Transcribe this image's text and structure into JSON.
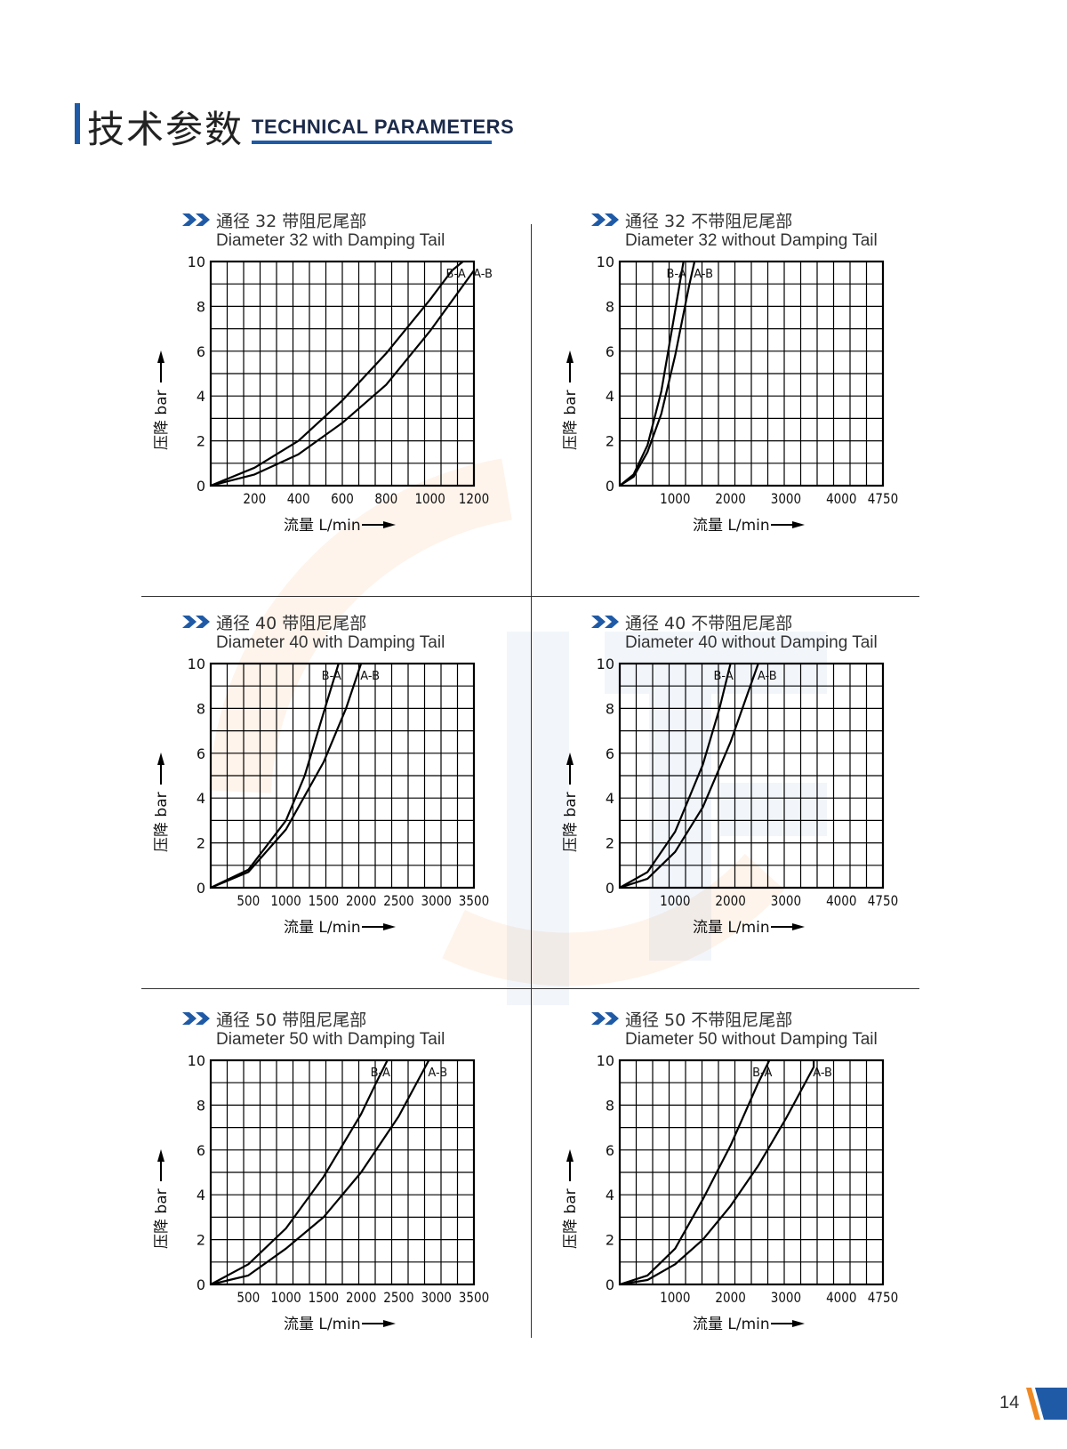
{
  "header": {
    "title_cn": "技术参数",
    "title_en": "TECHNICAL PARAMETERS"
  },
  "page_number": "14",
  "colors": {
    "accent": "#1f5aa6",
    "orange": "#f08a24",
    "line": "#000000",
    "text": "#333333"
  },
  "chart_data": [
    {
      "type": "line",
      "title_cn": "通径 32 带阻尼尾部",
      "title_en": "Diameter 32 with Damping Tail",
      "xlabel": "流量 L/min",
      "ylabel": "压降 bar",
      "xlim": [
        0,
        1200
      ],
      "ylim": [
        0,
        10
      ],
      "x_ticks": [
        "200",
        "400",
        "600",
        "800",
        "1000",
        "1200"
      ],
      "y_ticks": [
        "0",
        "2",
        "4",
        "6",
        "8",
        "10"
      ],
      "grid": true,
      "series": [
        {
          "name": "B-A",
          "x": [
            0,
            200,
            400,
            600,
            800,
            1000,
            1100,
            1150
          ],
          "y": [
            0,
            0.8,
            2.0,
            3.8,
            5.9,
            8.3,
            9.6,
            10
          ]
        },
        {
          "name": "A-B",
          "x": [
            0,
            200,
            400,
            600,
            800,
            1000,
            1200
          ],
          "y": [
            0,
            0.5,
            1.4,
            2.8,
            4.5,
            6.9,
            9.6
          ]
        }
      ]
    },
    {
      "type": "line",
      "title_cn": "通径 32 不带阻尼尾部",
      "title_en": "Diameter 32 without Damping Tail",
      "xlabel": "流量 L/min",
      "ylabel": "压降 bar",
      "xlim": [
        0,
        4750
      ],
      "ylim": [
        0,
        10
      ],
      "x_ticks": [
        "1000",
        "2000",
        "3000",
        "4000",
        "4750"
      ],
      "y_ticks": [
        "0",
        "2",
        "4",
        "6",
        "8",
        "10"
      ],
      "grid": true,
      "series": [
        {
          "name": "B-A",
          "x": [
            0,
            250,
            500,
            750,
            1000,
            1150
          ],
          "y": [
            0,
            0.5,
            1.8,
            4.2,
            7.8,
            10
          ]
        },
        {
          "name": "A-B",
          "x": [
            0,
            250,
            500,
            750,
            1000,
            1250,
            1350
          ],
          "y": [
            0,
            0.4,
            1.5,
            3.2,
            5.8,
            8.9,
            10
          ]
        }
      ]
    },
    {
      "type": "line",
      "title_cn": "通径 40 带阻尼尾部",
      "title_en": "Diameter 40 with Damping Tail",
      "xlabel": "流量 L/min",
      "ylabel": "压降 bar",
      "xlim": [
        0,
        3500
      ],
      "ylim": [
        0,
        10
      ],
      "x_ticks": [
        "500",
        "1000",
        "1500",
        "2000",
        "2500",
        "3000",
        "3500"
      ],
      "y_ticks": [
        "0",
        "2",
        "4",
        "6",
        "8",
        "10"
      ],
      "grid": true,
      "series": [
        {
          "name": "B-A",
          "x": [
            0,
            500,
            1000,
            1250,
            1500,
            1700
          ],
          "y": [
            0,
            0.8,
            3.0,
            5.0,
            7.8,
            10
          ]
        },
        {
          "name": "A-B",
          "x": [
            0,
            500,
            1000,
            1500,
            1800,
            2000
          ],
          "y": [
            0,
            0.7,
            2.6,
            5.6,
            8.0,
            10
          ]
        }
      ]
    },
    {
      "type": "line",
      "title_cn": "通径 40 不带阻尼尾部",
      "title_en": "Diameter 40 without Damping Tail",
      "xlabel": "流量 L/min",
      "ylabel": "压降 bar",
      "xlim": [
        0,
        4750
      ],
      "ylim": [
        0,
        10
      ],
      "x_ticks": [
        "1000",
        "2000",
        "3000",
        "4000",
        "4750"
      ],
      "y_ticks": [
        "0",
        "2",
        "4",
        "6",
        "8",
        "10"
      ],
      "grid": true,
      "series": [
        {
          "name": "B-A",
          "x": [
            0,
            500,
            1000,
            1500,
            1800,
            2000
          ],
          "y": [
            0,
            0.7,
            2.5,
            5.5,
            8.0,
            10
          ]
        },
        {
          "name": "A-B",
          "x": [
            0,
            500,
            1000,
            1500,
            2000,
            2300,
            2500
          ],
          "y": [
            0,
            0.4,
            1.6,
            3.6,
            6.5,
            8.6,
            10
          ]
        }
      ]
    },
    {
      "type": "line",
      "title_cn": "通径 50 带阻尼尾部",
      "title_en": "Diameter 50 with Damping Tail",
      "xlabel": "流量 L/min",
      "ylabel": "压降 bar",
      "xlim": [
        0,
        3500
      ],
      "ylim": [
        0,
        10
      ],
      "x_ticks": [
        "500",
        "1000",
        "1500",
        "2000",
        "2500",
        "3000",
        "3500"
      ],
      "y_ticks": [
        "0",
        "2",
        "4",
        "6",
        "8",
        "10"
      ],
      "grid": true,
      "series": [
        {
          "name": "B-A",
          "x": [
            0,
            500,
            1000,
            1500,
            2000,
            2200,
            2350
          ],
          "y": [
            0,
            0.9,
            2.5,
            4.8,
            7.6,
            9.0,
            10
          ]
        },
        {
          "name": "A-B",
          "x": [
            0,
            500,
            1000,
            1500,
            2000,
            2500,
            2900
          ],
          "y": [
            0,
            0.4,
            1.6,
            3.0,
            5.0,
            7.5,
            10
          ]
        }
      ]
    },
    {
      "type": "line",
      "title_cn": "通径 50 不带阻尼尾部",
      "title_en": "Diameter 50 without Damping Tail",
      "xlabel": "流量 L/min",
      "ylabel": "压降 bar",
      "xlim": [
        0,
        4750
      ],
      "ylim": [
        0,
        10
      ],
      "x_ticks": [
        "1000",
        "2000",
        "3000",
        "4000",
        "4750"
      ],
      "y_ticks": [
        "0",
        "2",
        "4",
        "6",
        "8",
        "10"
      ],
      "grid": true,
      "series": [
        {
          "name": "B-A",
          "x": [
            0,
            500,
            1000,
            1500,
            2000,
            2500,
            2700
          ],
          "y": [
            0,
            0.4,
            1.6,
            3.8,
            6.2,
            9.0,
            10
          ]
        },
        {
          "name": "A-B",
          "x": [
            0,
            500,
            1000,
            1500,
            2000,
            2500,
            3000,
            3500,
            3500
          ],
          "y": [
            0,
            0.2,
            0.9,
            2.0,
            3.5,
            5.3,
            7.4,
            9.7,
            10
          ]
        }
      ]
    }
  ]
}
